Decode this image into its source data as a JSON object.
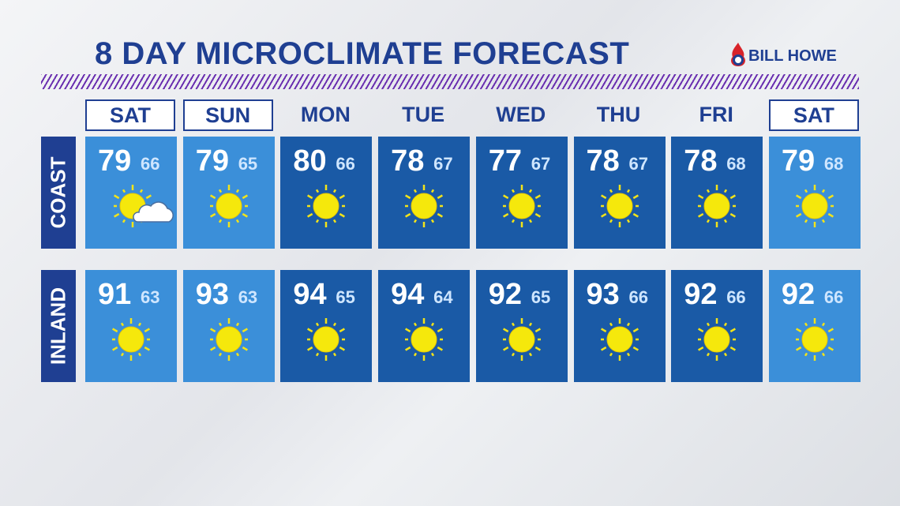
{
  "header": {
    "title": "8 DAY MICROCLIMATE FORECAST",
    "sponsor": "BILL HOWE"
  },
  "days": [
    "SAT",
    "SUN",
    "MON",
    "TUE",
    "WED",
    "THU",
    "FRI",
    "SAT"
  ],
  "rows": [
    {
      "label": "COAST",
      "highs": [
        79,
        79,
        80,
        78,
        77,
        78,
        78,
        79
      ],
      "lows": [
        66,
        65,
        66,
        67,
        67,
        67,
        68,
        68
      ]
    },
    {
      "label": "INLAND",
      "highs": [
        91,
        93,
        94,
        94,
        92,
        93,
        92,
        92
      ],
      "lows": [
        63,
        63,
        65,
        64,
        65,
        66,
        66,
        66
      ]
    }
  ]
}
